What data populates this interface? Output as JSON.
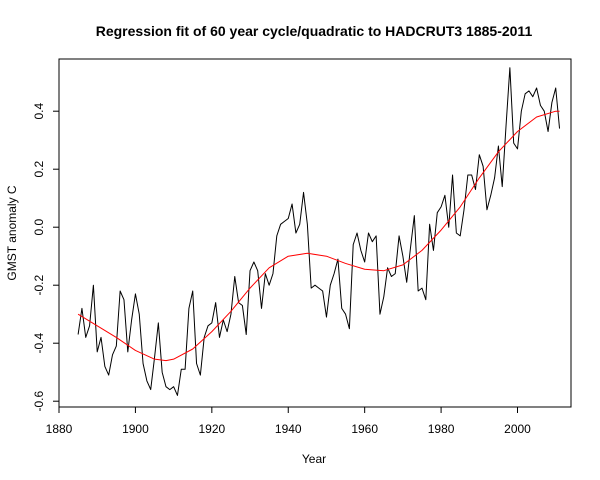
{
  "chart_data": {
    "type": "line",
    "title": "Regression fit of 60 year cycle/quadratic to HADCRUT3 1885-2011",
    "xlabel": "Year",
    "ylabel": "GMST anomaly C",
    "xlim": [
      1880,
      2014
    ],
    "ylim": [
      -0.62,
      0.58
    ],
    "x_ticks": [
      1880,
      1900,
      1920,
      1940,
      1960,
      1980,
      2000
    ],
    "y_ticks": [
      -0.6,
      -0.4,
      -0.2,
      0.0,
      0.2,
      0.4
    ],
    "x_tick_labels": [
      "1880",
      "1900",
      "1920",
      "1940",
      "1960",
      "1980",
      "2000"
    ],
    "y_tick_labels": [
      "-0.6",
      "-0.4",
      "-0.2",
      "0.0",
      "0.2",
      "0.4"
    ],
    "grid": false,
    "series": [
      {
        "color": "#000000",
        "x": [
          1885,
          1886,
          1887,
          1888,
          1889,
          1890,
          1891,
          1892,
          1893,
          1894,
          1895,
          1896,
          1897,
          1898,
          1899,
          1900,
          1901,
          1902,
          1903,
          1904,
          1905,
          1906,
          1907,
          1908,
          1909,
          1910,
          1911,
          1912,
          1913,
          1914,
          1915,
          1916,
          1917,
          1918,
          1919,
          1920,
          1921,
          1922,
          1923,
          1924,
          1925,
          1926,
          1927,
          1928,
          1929,
          1930,
          1931,
          1932,
          1933,
          1934,
          1935,
          1936,
          1937,
          1938,
          1939,
          1940,
          1941,
          1942,
          1943,
          1944,
          1945,
          1946,
          1947,
          1948,
          1949,
          1950,
          1951,
          1952,
          1953,
          1954,
          1955,
          1956,
          1957,
          1958,
          1959,
          1960,
          1961,
          1962,
          1963,
          1964,
          1965,
          1966,
          1967,
          1968,
          1969,
          1970,
          1971,
          1972,
          1973,
          1974,
          1975,
          1976,
          1977,
          1978,
          1979,
          1980,
          1981,
          1982,
          1983,
          1984,
          1985,
          1986,
          1987,
          1988,
          1989,
          1990,
          1991,
          1992,
          1993,
          1994,
          1995,
          1996,
          1997,
          1998,
          1999,
          2000,
          2001,
          2002,
          2003,
          2004,
          2005,
          2006,
          2007,
          2008,
          2009,
          2010,
          2011
        ],
        "values": [
          -0.37,
          -0.28,
          -0.38,
          -0.34,
          -0.2,
          -0.43,
          -0.38,
          -0.48,
          -0.51,
          -0.44,
          -0.41,
          -0.22,
          -0.25,
          -0.43,
          -0.32,
          -0.23,
          -0.3,
          -0.47,
          -0.53,
          -0.56,
          -0.45,
          -0.33,
          -0.5,
          -0.55,
          -0.56,
          -0.55,
          -0.58,
          -0.49,
          -0.49,
          -0.28,
          -0.22,
          -0.47,
          -0.51,
          -0.38,
          -0.34,
          -0.33,
          -0.26,
          -0.38,
          -0.32,
          -0.36,
          -0.3,
          -0.17,
          -0.26,
          -0.27,
          -0.37,
          -0.15,
          -0.12,
          -0.15,
          -0.28,
          -0.16,
          -0.2,
          -0.16,
          -0.03,
          0.01,
          0.02,
          0.03,
          0.08,
          -0.02,
          0.01,
          0.12,
          0.01,
          -0.21,
          -0.2,
          -0.21,
          -0.22,
          -0.31,
          -0.2,
          -0.16,
          -0.11,
          -0.28,
          -0.3,
          -0.35,
          -0.06,
          -0.02,
          -0.08,
          -0.12,
          -0.02,
          -0.05,
          -0.03,
          -0.3,
          -0.24,
          -0.14,
          -0.17,
          -0.16,
          -0.03,
          -0.1,
          -0.19,
          -0.07,
          0.04,
          -0.22,
          -0.21,
          -0.25,
          0.01,
          -0.08,
          0.05,
          0.07,
          0.11,
          0.0,
          0.18,
          -0.02,
          -0.03,
          0.06,
          0.18,
          0.18,
          0.13,
          0.25,
          0.21,
          0.06,
          0.11,
          0.17,
          0.28,
          0.14,
          0.35,
          0.55,
          0.29,
          0.27,
          0.4,
          0.46,
          0.47,
          0.45,
          0.48,
          0.42,
          0.4,
          0.33,
          0.43,
          0.48,
          0.34
        ]
      },
      {
        "color": "#ff0000",
        "x": [
          1885,
          1890,
          1895,
          1900,
          1905,
          1908,
          1910,
          1915,
          1920,
          1925,
          1930,
          1935,
          1940,
          1945,
          1950,
          1955,
          1960,
          1965,
          1970,
          1975,
          1980,
          1985,
          1990,
          1995,
          2000,
          2005,
          2010,
          2011
        ],
        "values": [
          -0.3,
          -0.34,
          -0.38,
          -0.425,
          -0.455,
          -0.46,
          -0.455,
          -0.42,
          -0.36,
          -0.29,
          -0.21,
          -0.14,
          -0.1,
          -0.09,
          -0.1,
          -0.125,
          -0.145,
          -0.15,
          -0.13,
          -0.08,
          -0.01,
          0.07,
          0.17,
          0.26,
          0.33,
          0.38,
          0.4,
          0.4
        ]
      }
    ]
  }
}
